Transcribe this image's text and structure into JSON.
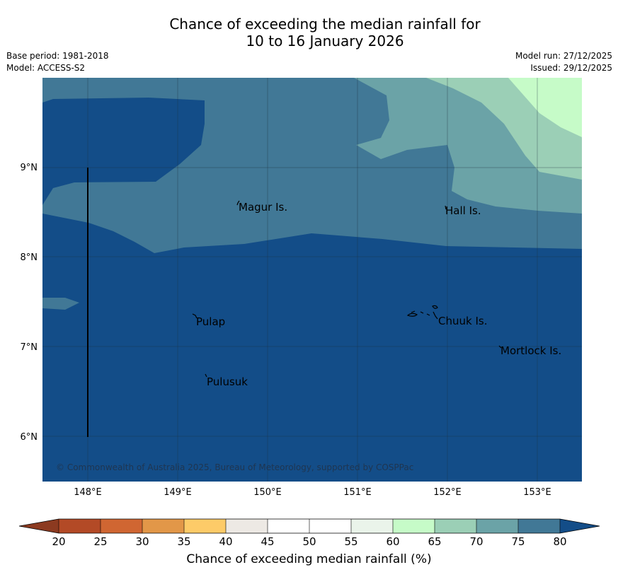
{
  "title": {
    "line1": "Chance of exceeding the median rainfall for",
    "line2": "10 to 16 January 2026"
  },
  "meta": {
    "base_period": "Base period: 1981-2018",
    "model": "Model: ACCESS-S2",
    "model_run": "Model run: 27/12/2025",
    "issued": "Issued: 29/12/2025"
  },
  "axes": {
    "lon_labels": [
      "148°E",
      "149°E",
      "150°E",
      "151°E",
      "152°E",
      "153°E"
    ],
    "lat_labels": [
      "9°N",
      "8°N",
      "7°N",
      "6°N"
    ]
  },
  "places": {
    "magur": "Magur Is.",
    "hall": "Hall Is.",
    "pulap": "Pulap",
    "chuuk": "Chuuk Is.",
    "mortlock": "Mortlock Is.",
    "pulusuk": "Pulusuk"
  },
  "copyright": "© Commonwealth of Australia 2025, Bureau of Meteorology, supported by COSPPac",
  "colorbar": {
    "title": "Chance of exceeding median rainfall (%)",
    "ticks": [
      "20",
      "25",
      "30",
      "35",
      "40",
      "45",
      "50",
      "55",
      "60",
      "65",
      "70",
      "75",
      "80"
    ],
    "colors": {
      "below_20": "#8c3a20",
      "20_25": "#b34a26",
      "25_30": "#d06632",
      "30_35": "#e29748",
      "35_40": "#fdcb68",
      "40_45": "#ede9e4",
      "45_50": "#ffffff",
      "50_55": "#ffffff",
      "55_60": "#eaf4ea",
      "60_65": "#c6fbc8",
      "65_70": "#9bcfb6",
      "70_75": "#6ba3a7",
      "75_80": "#417896",
      "above_80": "#134d88"
    }
  }
}
